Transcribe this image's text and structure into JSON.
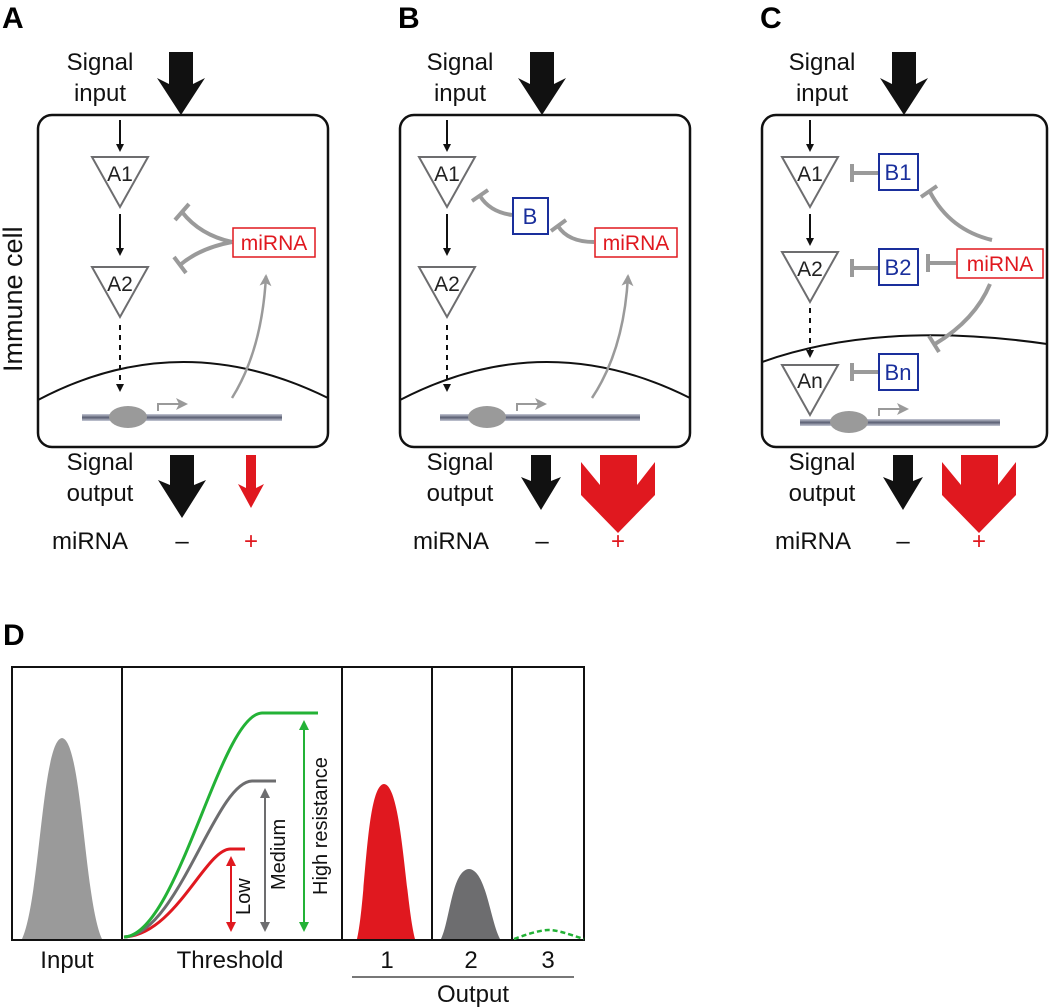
{
  "panels": {
    "A": {
      "letter": "A"
    },
    "B": {
      "letter": "B"
    },
    "C": {
      "letter": "C"
    },
    "D": {
      "letter": "D"
    }
  },
  "labels": {
    "signal_input_line1": "Signal",
    "signal_input_line2": "input",
    "signal_output_line1": "Signal",
    "signal_output_line2": "output",
    "mirna_row": "miRNA",
    "minus": "–",
    "plus": "+",
    "immune_cell": "Immune cell",
    "mirna_box": "miRNA"
  },
  "nodes": {
    "A1": "A1",
    "A2": "A2",
    "An": "An",
    "B": "B",
    "B1": "B1",
    "B2": "B2",
    "Bn": "Bn"
  },
  "panelD": {
    "input_label": "Input",
    "threshold_label": "Threshold",
    "low_label": "Low",
    "medium_label": "Medium",
    "high_label": "High resistance",
    "output_label": "Output",
    "output_bins": [
      "1",
      "2",
      "3"
    ]
  },
  "colors": {
    "red": "#e0181f",
    "green": "#23b236",
    "gray": "#6d6d6f",
    "light_gray": "#9a9a9a",
    "blue": "#1a2f9c",
    "black": "#111111"
  }
}
